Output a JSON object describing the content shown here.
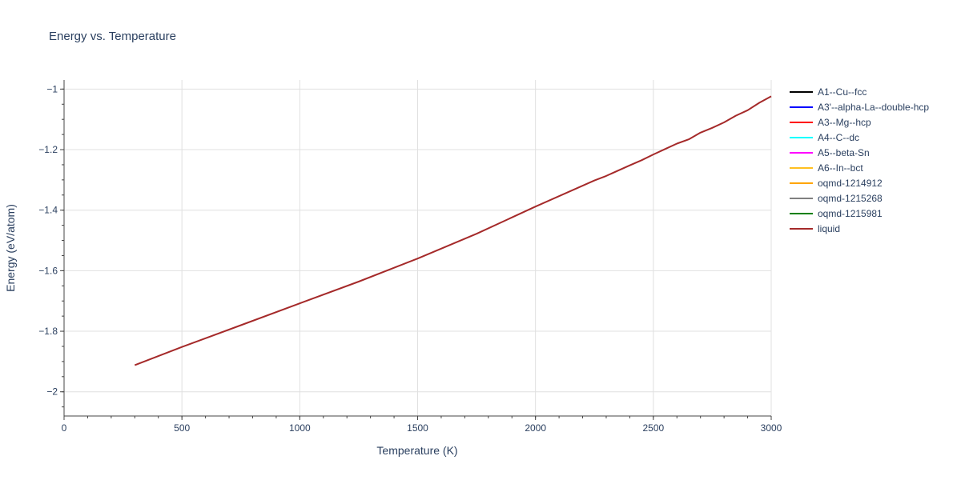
{
  "chart_data": {
    "type": "line",
    "title": "Energy vs. Temperature",
    "xlabel": "Temperature (K)",
    "ylabel": "Energy (eV/atom)",
    "xlim": [
      0,
      3000
    ],
    "ylim": [
      -2.08,
      -0.97
    ],
    "x_ticks": [
      0,
      500,
      1000,
      1500,
      2000,
      2500,
      3000
    ],
    "x_tick_labels": [
      "0",
      "500",
      "1000",
      "1500",
      "2000",
      "2500",
      "3000"
    ],
    "y_ticks": [
      -2,
      -1.8,
      -1.6,
      -1.4,
      -1.2,
      -1
    ],
    "y_tick_labels": [
      "−2",
      "−1.8",
      "−1.6",
      "−1.4",
      "−1.2",
      "−1"
    ],
    "grid": true,
    "legend_position": "right",
    "series": [
      {
        "name": "A1--Cu--fcc",
        "color": "#000000",
        "x": [],
        "y": []
      },
      {
        "name": "A3'--alpha-La--double-hcp",
        "color": "#0000ff",
        "x": [],
        "y": []
      },
      {
        "name": "A3--Mg--hcp",
        "color": "#ff0000",
        "x": [],
        "y": []
      },
      {
        "name": "A4--C--dc",
        "color": "#00ffff",
        "x": [],
        "y": []
      },
      {
        "name": "A5--beta-Sn",
        "color": "#ff00ff",
        "x": [],
        "y": []
      },
      {
        "name": "A6--In--bct",
        "color": "#ffc020",
        "x": [],
        "y": []
      },
      {
        "name": "oqmd-1214912",
        "color": "#ffa500",
        "x": [],
        "y": []
      },
      {
        "name": "oqmd-1215268",
        "color": "#808080",
        "x": [],
        "y": []
      },
      {
        "name": "oqmd-1215981",
        "color": "#008000",
        "x": [],
        "y": []
      },
      {
        "name": "liquid",
        "color": "#a52a2a",
        "x": [
          300,
          500,
          750,
          1000,
          1250,
          1500,
          1750,
          2000,
          2250,
          2300,
          2400,
          2450,
          2500,
          2550,
          2600,
          2650,
          2700,
          2750,
          2800,
          2850,
          2900,
          2950,
          3000
        ],
        "y": [
          -1.912,
          -1.852,
          -1.78,
          -1.708,
          -1.636,
          -1.56,
          -1.478,
          -1.388,
          -1.302,
          -1.287,
          -1.252,
          -1.235,
          -1.216,
          -1.198,
          -1.18,
          -1.166,
          -1.144,
          -1.128,
          -1.11,
          -1.088,
          -1.07,
          -1.045,
          -1.024
        ]
      }
    ]
  }
}
